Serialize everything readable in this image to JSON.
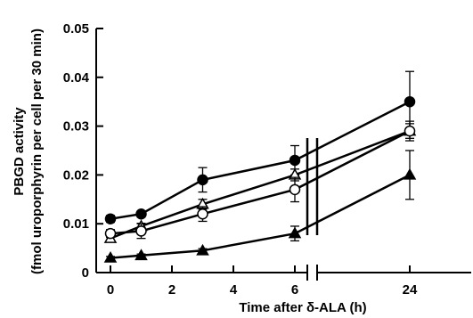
{
  "chart_data": {
    "type": "line",
    "title": "",
    "xlabel": "Time after δ-ALA (h)",
    "ylabel_line1": "PBGD activity",
    "ylabel_line2": "(fmol uroporphyrin per cell per 30 min)",
    "x_axis_break": true,
    "x_ticks": [
      "0",
      "2",
      "4",
      "6",
      "24"
    ],
    "x_tick_values": [
      0,
      2,
      4,
      6,
      24
    ],
    "y_ticks": [
      "0",
      "0.01",
      "0.02",
      "0.03",
      "0.04",
      "0.05"
    ],
    "ylim": [
      0,
      0.05
    ],
    "grid": false,
    "legend": "none",
    "series": [
      {
        "marker": "filled-circle",
        "x": [
          0,
          1,
          3,
          6,
          24
        ],
        "y": [
          0.011,
          0.012,
          0.019,
          0.023,
          0.035
        ],
        "err": [
          0.0007,
          0.0006,
          0.0025,
          0.003,
          0.0062
        ]
      },
      {
        "marker": "open-triangle",
        "x": [
          0,
          1,
          3,
          6,
          24
        ],
        "y": [
          0.007,
          0.0095,
          0.014,
          0.02,
          0.029
        ],
        "err": [
          0.0006,
          0.0006,
          0.001,
          0.0012,
          0.002
        ]
      },
      {
        "marker": "open-circle",
        "x": [
          0,
          1,
          3,
          6,
          24
        ],
        "y": [
          0.008,
          0.0085,
          0.012,
          0.017,
          0.029
        ],
        "err": [
          0.0008,
          0.0015,
          0.0015,
          0.0025,
          0.0015
        ]
      },
      {
        "marker": "filled-triangle",
        "x": [
          0,
          1,
          3,
          6,
          24
        ],
        "y": [
          0.003,
          0.0035,
          0.0045,
          0.008,
          0.02
        ],
        "err": [
          0.0003,
          0.0003,
          0.0004,
          0.0015,
          0.005
        ]
      }
    ],
    "colors": {
      "ink": "#000000",
      "background": "#ffffff"
    }
  }
}
